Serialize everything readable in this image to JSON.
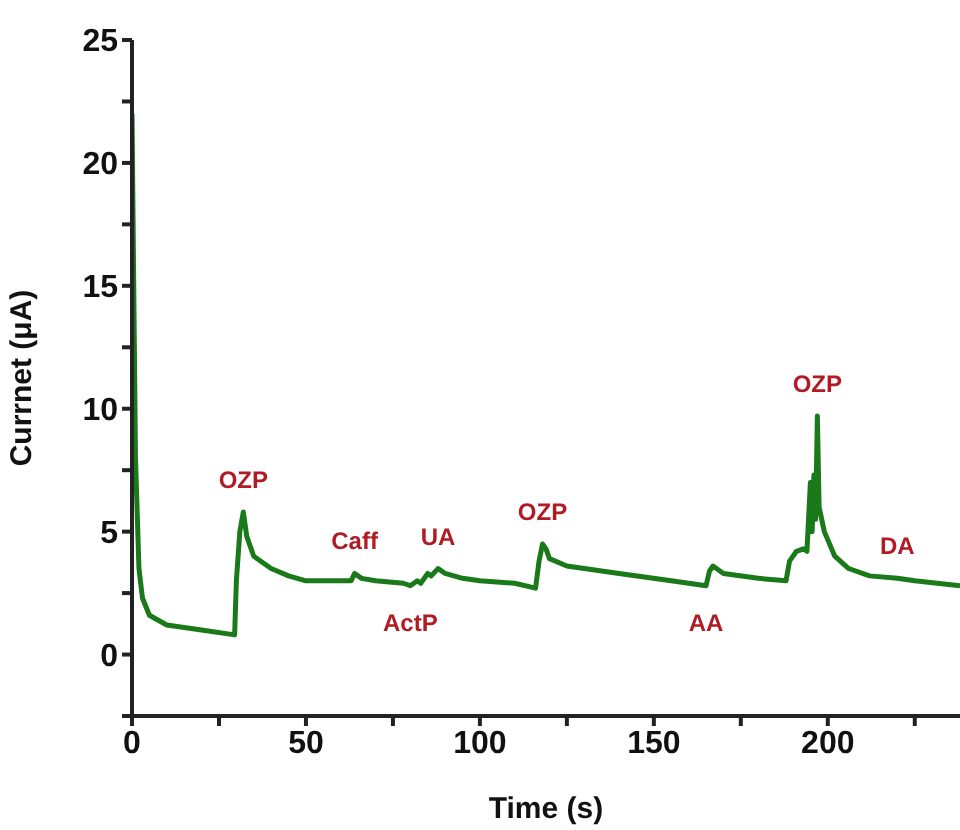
{
  "chart_data": {
    "type": "line",
    "xlabel": "Time (s)",
    "ylabel": "Currnet (μA)",
    "x": [
      0,
      0.5,
      1,
      2,
      3,
      5,
      10,
      20,
      29.5,
      30,
      31,
      32,
      33,
      35,
      40,
      45,
      50,
      60,
      63,
      64,
      66,
      70,
      78,
      80,
      82,
      83,
      85,
      86,
      88,
      90,
      95,
      100,
      110,
      116,
      117,
      118,
      119,
      120,
      125,
      140,
      155,
      160,
      165,
      166,
      167,
      170,
      180,
      188,
      189,
      191,
      193,
      194,
      195,
      195.5,
      196,
      196.5,
      197,
      197.5,
      199,
      202,
      206,
      212,
      220,
      225,
      238
    ],
    "series": [
      {
        "color": "#1a7a1a",
        "values": [
          22,
          15,
          8,
          3.5,
          2.3,
          1.6,
          1.2,
          1.0,
          0.8,
          3,
          5,
          5.8,
          4.8,
          4.0,
          3.5,
          3.2,
          3.0,
          3.0,
          3.0,
          3.3,
          3.1,
          3.0,
          2.9,
          2.8,
          3.0,
          2.9,
          3.3,
          3.2,
          3.5,
          3.3,
          3.1,
          3.0,
          2.9,
          2.7,
          3.8,
          4.5,
          4.3,
          3.9,
          3.6,
          3.3,
          3.0,
          2.9,
          2.8,
          3.4,
          3.6,
          3.3,
          3.1,
          3.0,
          3.8,
          4.2,
          4.3,
          4.2,
          7.0,
          5.0,
          7.3,
          5.5,
          9.7,
          6.0,
          5.0,
          4.0,
          3.5,
          3.2,
          3.1,
          3.0,
          2.8
        ]
      }
    ],
    "xlim": [
      0,
      238
    ],
    "ylim": [
      -2.5,
      25
    ],
    "xticks": [
      0,
      {
        "value": 25,
        "label": null
      },
      50,
      {
        "value": 75,
        "label": null
      },
      100,
      {
        "value": 125,
        "label": null
      },
      150,
      {
        "value": 175,
        "label": null
      },
      200,
      {
        "value": 225,
        "label": null
      }
    ],
    "yticks": [
      {
        "value": -2.5,
        "label": null
      },
      0,
      {
        "value": 2.5,
        "label": null
      },
      5,
      {
        "value": 7.5,
        "label": null
      },
      10,
      {
        "value": 12.5,
        "label": null
      },
      15,
      {
        "value": 17.5,
        "label": null
      },
      20,
      {
        "value": 22.5,
        "label": null
      },
      25
    ],
    "grid": false,
    "legend": false,
    "marker": "none",
    "line_style": "solid",
    "annotations": [
      {
        "text": "OZP",
        "x": 32,
        "y": 5.8
      },
      {
        "text": "Caff",
        "x": 64,
        "y": 3.3
      },
      {
        "text": "UA",
        "x": 88,
        "y": 3.5
      },
      {
        "text": "ActP",
        "x": 80,
        "y": 2.8
      },
      {
        "text": "OZP",
        "x": 118,
        "y": 4.5
      },
      {
        "text": "AA",
        "x": 165,
        "y": 2.8
      },
      {
        "text": "OZP",
        "x": 197,
        "y": 9.7
      },
      {
        "text": "DA",
        "x": 220,
        "y": 3.1
      }
    ]
  }
}
